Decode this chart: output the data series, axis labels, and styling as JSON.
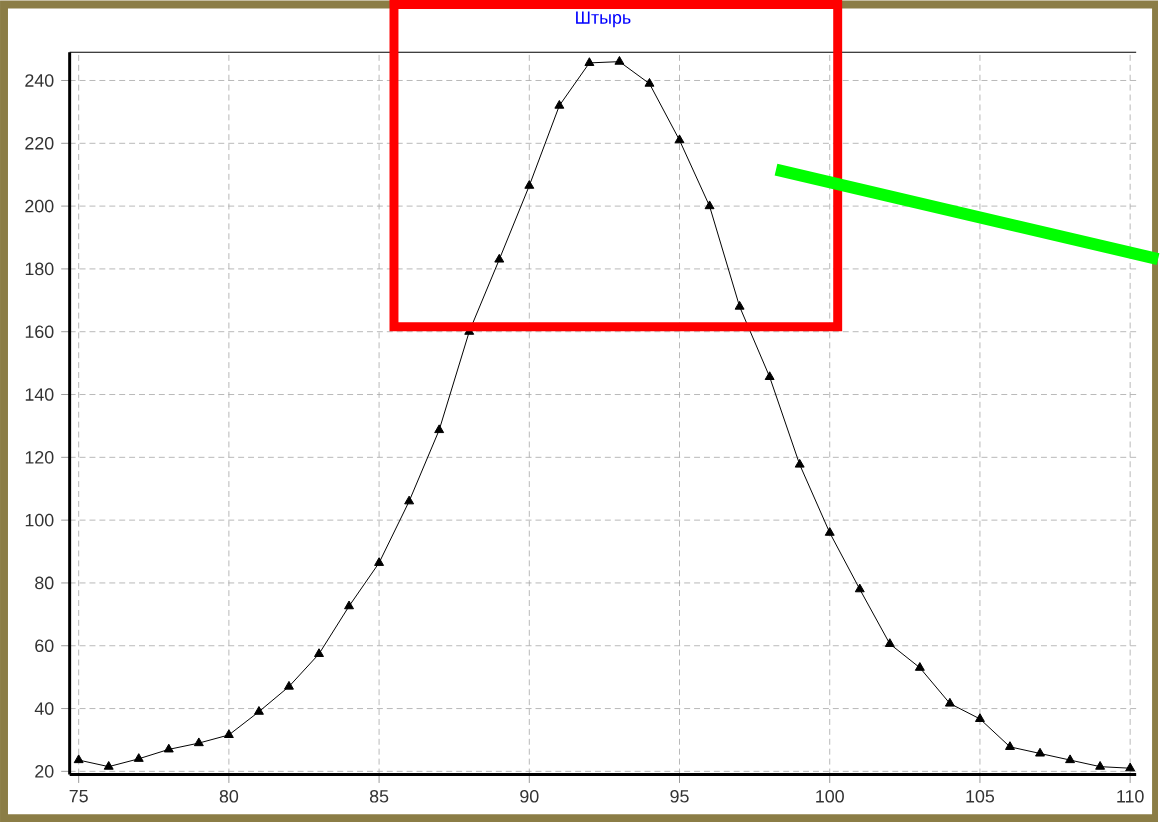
{
  "chart_data": {
    "type": "line",
    "title": "Штырь",
    "x": [
      75,
      76,
      77,
      78,
      79,
      80,
      81,
      82,
      83,
      84,
      85,
      86,
      87,
      88,
      89,
      90,
      91,
      92,
      93,
      94,
      95,
      96,
      97,
      98,
      99,
      100,
      101,
      102,
      103,
      104,
      105,
      106,
      107,
      108,
      109,
      110
    ],
    "series": [
      {
        "color": "#000000",
        "values": [
          23.6,
          21.5,
          24,
          27,
          29,
          31.6,
          39,
          47,
          57.4,
          72.6,
          86.4,
          106,
          128.7,
          160,
          183,
          206.5,
          232,
          245.6,
          246,
          239,
          221,
          200,
          168,
          145.6,
          117.7,
          96,
          78,
          60.6,
          53,
          41.6,
          36.7,
          27.8,
          25.7,
          23.6,
          21.5,
          21
        ]
      }
    ],
    "xlim": [
      74.7,
      110.2
    ],
    "ylim": [
      19,
      249
    ],
    "xticks": [
      75,
      80,
      85,
      90,
      95,
      100,
      105,
      110
    ],
    "yticks": [
      20,
      40,
      60,
      80,
      100,
      120,
      140,
      160,
      180,
      200,
      220,
      240
    ],
    "grid": true,
    "marker": "triangle",
    "line_style": "solid"
  }
}
